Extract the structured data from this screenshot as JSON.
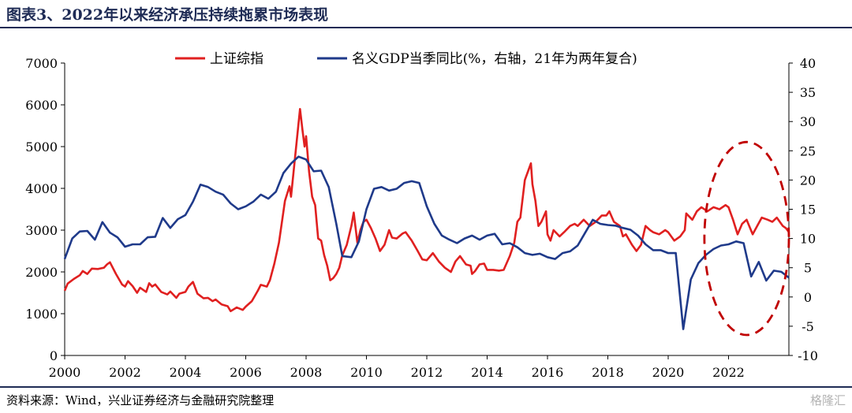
{
  "title": "图表3、2022年以来经济承压持续拖累市场表现",
  "source": "资料来源：Wind，兴业证券经济与金融研究院整理",
  "watermark": "格隆汇",
  "chart_data": {
    "type": "line",
    "legend_position": "top",
    "grid": false,
    "x_range": [
      2000,
      2024
    ],
    "x_ticks": [
      "2000",
      "2002",
      "2004",
      "2006",
      "2008",
      "2010",
      "2012",
      "2014",
      "2016",
      "2018",
      "2020",
      "2022"
    ],
    "y_left_range": [
      0,
      7000
    ],
    "y_left_ticks": [
      "0",
      "1000",
      "2000",
      "3000",
      "4000",
      "5000",
      "6000",
      "7000"
    ],
    "y_right_range": [
      -10,
      40
    ],
    "y_right_ticks": [
      "-10",
      "-5",
      "0",
      "5",
      "10",
      "15",
      "20",
      "25",
      "30",
      "35",
      "40"
    ],
    "colors": {
      "shanghai": "#e02020",
      "gdp": "#1f3a8a",
      "annotation": "#c00000"
    },
    "annotation": {
      "type": "dashed-ellipse",
      "x_range": [
        2021.2,
        2024.0
      ],
      "y_right_range": [
        -6.5,
        26.5
      ]
    },
    "series": [
      {
        "name": "上证综指",
        "axis": "left",
        "points": [
          [
            2000.0,
            1550
          ],
          [
            2000.1,
            1720
          ],
          [
            2000.3,
            1830
          ],
          [
            2000.5,
            1920
          ],
          [
            2000.6,
            2020
          ],
          [
            2000.75,
            1950
          ],
          [
            2000.9,
            2080
          ],
          [
            2001.1,
            2070
          ],
          [
            2001.3,
            2100
          ],
          [
            2001.4,
            2180
          ],
          [
            2001.5,
            2230
          ],
          [
            2001.7,
            1950
          ],
          [
            2001.9,
            1700
          ],
          [
            2002.0,
            1650
          ],
          [
            2002.1,
            1780
          ],
          [
            2002.25,
            1660
          ],
          [
            2002.4,
            1500
          ],
          [
            2002.5,
            1620
          ],
          [
            2002.7,
            1520
          ],
          [
            2002.8,
            1730
          ],
          [
            2002.9,
            1650
          ],
          [
            2003.0,
            1700
          ],
          [
            2003.2,
            1520
          ],
          [
            2003.4,
            1460
          ],
          [
            2003.5,
            1530
          ],
          [
            2003.7,
            1380
          ],
          [
            2003.8,
            1480
          ],
          [
            2004.0,
            1520
          ],
          [
            2004.1,
            1650
          ],
          [
            2004.25,
            1760
          ],
          [
            2004.4,
            1480
          ],
          [
            2004.6,
            1370
          ],
          [
            2004.75,
            1380
          ],
          [
            2004.9,
            1300
          ],
          [
            2005.0,
            1340
          ],
          [
            2005.2,
            1220
          ],
          [
            2005.4,
            1180
          ],
          [
            2005.5,
            1060
          ],
          [
            2005.7,
            1150
          ],
          [
            2005.9,
            1090
          ],
          [
            2006.0,
            1170
          ],
          [
            2006.2,
            1300
          ],
          [
            2006.4,
            1550
          ],
          [
            2006.5,
            1690
          ],
          [
            2006.7,
            1650
          ],
          [
            2006.8,
            1800
          ],
          [
            2006.95,
            2200
          ],
          [
            2007.1,
            2700
          ],
          [
            2007.3,
            3700
          ],
          [
            2007.45,
            4050
          ],
          [
            2007.5,
            3800
          ],
          [
            2007.6,
            4500
          ],
          [
            2007.7,
            5200
          ],
          [
            2007.8,
            5900
          ],
          [
            2007.88,
            5400
          ],
          [
            2007.95,
            5000
          ],
          [
            2008.0,
            5250
          ],
          [
            2008.1,
            4400
          ],
          [
            2008.2,
            3800
          ],
          [
            2008.3,
            3600
          ],
          [
            2008.4,
            2800
          ],
          [
            2008.5,
            2750
          ],
          [
            2008.6,
            2400
          ],
          [
            2008.7,
            2150
          ],
          [
            2008.8,
            1800
          ],
          [
            2008.9,
            1850
          ],
          [
            2009.0,
            1950
          ],
          [
            2009.1,
            2100
          ],
          [
            2009.2,
            2400
          ],
          [
            2009.35,
            2650
          ],
          [
            2009.5,
            3100
          ],
          [
            2009.58,
            3420
          ],
          [
            2009.7,
            2700
          ],
          [
            2009.8,
            3000
          ],
          [
            2009.9,
            3200
          ],
          [
            2010.0,
            3250
          ],
          [
            2010.15,
            3050
          ],
          [
            2010.3,
            2800
          ],
          [
            2010.45,
            2500
          ],
          [
            2010.6,
            2650
          ],
          [
            2010.75,
            3000
          ],
          [
            2010.85,
            2820
          ],
          [
            2011.0,
            2800
          ],
          [
            2011.2,
            2920
          ],
          [
            2011.3,
            2950
          ],
          [
            2011.5,
            2750
          ],
          [
            2011.7,
            2500
          ],
          [
            2011.85,
            2300
          ],
          [
            2012.0,
            2280
          ],
          [
            2012.2,
            2450
          ],
          [
            2012.4,
            2250
          ],
          [
            2012.6,
            2100
          ],
          [
            2012.8,
            2000
          ],
          [
            2012.95,
            2250
          ],
          [
            2013.1,
            2380
          ],
          [
            2013.3,
            2180
          ],
          [
            2013.45,
            2150
          ],
          [
            2013.5,
            1950
          ],
          [
            2013.6,
            2020
          ],
          [
            2013.75,
            2180
          ],
          [
            2013.9,
            2200
          ],
          [
            2014.0,
            2050
          ],
          [
            2014.2,
            2050
          ],
          [
            2014.4,
            2030
          ],
          [
            2014.55,
            2050
          ],
          [
            2014.75,
            2380
          ],
          [
            2014.9,
            2700
          ],
          [
            2015.0,
            3200
          ],
          [
            2015.1,
            3300
          ],
          [
            2015.25,
            4200
          ],
          [
            2015.4,
            4500
          ],
          [
            2015.45,
            4600
          ],
          [
            2015.5,
            4100
          ],
          [
            2015.6,
            3700
          ],
          [
            2015.7,
            3100
          ],
          [
            2015.8,
            3200
          ],
          [
            2015.95,
            3450
          ],
          [
            2016.0,
            2900
          ],
          [
            2016.1,
            2750
          ],
          [
            2016.2,
            3000
          ],
          [
            2016.4,
            2850
          ],
          [
            2016.55,
            2950
          ],
          [
            2016.75,
            3100
          ],
          [
            2016.9,
            3150
          ],
          [
            2017.0,
            3100
          ],
          [
            2017.2,
            3250
          ],
          [
            2017.4,
            3100
          ],
          [
            2017.6,
            3200
          ],
          [
            2017.8,
            3350
          ],
          [
            2017.95,
            3350
          ],
          [
            2018.05,
            3450
          ],
          [
            2018.2,
            3200
          ],
          [
            2018.4,
            3100
          ],
          [
            2018.5,
            2850
          ],
          [
            2018.6,
            2900
          ],
          [
            2018.8,
            2650
          ],
          [
            2018.95,
            2500
          ],
          [
            2019.1,
            2650
          ],
          [
            2019.25,
            3100
          ],
          [
            2019.4,
            3000
          ],
          [
            2019.5,
            2950
          ],
          [
            2019.7,
            2900
          ],
          [
            2019.9,
            3000
          ],
          [
            2020.0,
            2950
          ],
          [
            2020.1,
            2850
          ],
          [
            2020.2,
            2750
          ],
          [
            2020.4,
            2850
          ],
          [
            2020.55,
            3000
          ],
          [
            2020.6,
            3400
          ],
          [
            2020.8,
            3250
          ],
          [
            2020.95,
            3450
          ],
          [
            2021.1,
            3550
          ],
          [
            2021.3,
            3450
          ],
          [
            2021.5,
            3550
          ],
          [
            2021.7,
            3500
          ],
          [
            2021.9,
            3600
          ],
          [
            2022.0,
            3550
          ],
          [
            2022.15,
            3250
          ],
          [
            2022.3,
            2900
          ],
          [
            2022.45,
            3150
          ],
          [
            2022.6,
            3250
          ],
          [
            2022.8,
            2900
          ],
          [
            2022.95,
            3100
          ],
          [
            2023.1,
            3300
          ],
          [
            2023.3,
            3250
          ],
          [
            2023.45,
            3200
          ],
          [
            2023.6,
            3300
          ],
          [
            2023.8,
            3100
          ],
          [
            2023.9,
            3050
          ],
          [
            2024.0,
            2950
          ]
        ]
      },
      {
        "name": "名义GDP当季同比(%，右轴，21年为两年复合)",
        "axis": "right",
        "points": [
          [
            2000.0,
            6.5
          ],
          [
            2000.25,
            10
          ],
          [
            2000.5,
            11.2
          ],
          [
            2000.75,
            11.3
          ],
          [
            2001.0,
            9.8
          ],
          [
            2001.25,
            12.8
          ],
          [
            2001.5,
            11
          ],
          [
            2001.75,
            10.2
          ],
          [
            2002.0,
            8.6
          ],
          [
            2002.25,
            9
          ],
          [
            2002.5,
            9
          ],
          [
            2002.75,
            10.2
          ],
          [
            2003.0,
            10.3
          ],
          [
            2003.25,
            13.5
          ],
          [
            2003.5,
            11.8
          ],
          [
            2003.75,
            13.3
          ],
          [
            2004.0,
            14
          ],
          [
            2004.25,
            16.3
          ],
          [
            2004.5,
            19.2
          ],
          [
            2004.75,
            18.8
          ],
          [
            2005.0,
            18
          ],
          [
            2005.25,
            17.5
          ],
          [
            2005.5,
            16
          ],
          [
            2005.75,
            15
          ],
          [
            2006.0,
            15.5
          ],
          [
            2006.25,
            16.3
          ],
          [
            2006.5,
            17.5
          ],
          [
            2006.75,
            16.8
          ],
          [
            2007.0,
            18
          ],
          [
            2007.25,
            21.2
          ],
          [
            2007.5,
            22.8
          ],
          [
            2007.75,
            24
          ],
          [
            2008.0,
            23.5
          ],
          [
            2008.25,
            21.5
          ],
          [
            2008.5,
            21.6
          ],
          [
            2008.75,
            18.8
          ],
          [
            2009.0,
            12.5
          ],
          [
            2009.2,
            7
          ],
          [
            2009.5,
            6.8
          ],
          [
            2009.75,
            9.5
          ],
          [
            2010.0,
            15
          ],
          [
            2010.25,
            18.5
          ],
          [
            2010.5,
            18.8
          ],
          [
            2010.75,
            18.2
          ],
          [
            2011.0,
            18.5
          ],
          [
            2011.25,
            19.5
          ],
          [
            2011.5,
            19.8
          ],
          [
            2011.75,
            19.5
          ],
          [
            2012.0,
            15.5
          ],
          [
            2012.25,
            12.5
          ],
          [
            2012.5,
            10.5
          ],
          [
            2012.75,
            9.8
          ],
          [
            2013.0,
            9.2
          ],
          [
            2013.25,
            10
          ],
          [
            2013.5,
            10.5
          ],
          [
            2013.75,
            9.8
          ],
          [
            2014.0,
            10.5
          ],
          [
            2014.25,
            10.8
          ],
          [
            2014.5,
            9
          ],
          [
            2014.75,
            9.2
          ],
          [
            2015.0,
            8.5
          ],
          [
            2015.25,
            7.5
          ],
          [
            2015.5,
            7.2
          ],
          [
            2015.75,
            7.4
          ],
          [
            2016.0,
            6.8
          ],
          [
            2016.25,
            6.5
          ],
          [
            2016.5,
            7.5
          ],
          [
            2016.75,
            7.8
          ],
          [
            2017.0,
            8.8
          ],
          [
            2017.25,
            11
          ],
          [
            2017.5,
            13.2
          ],
          [
            2017.75,
            12.5
          ],
          [
            2018.0,
            12.3
          ],
          [
            2018.25,
            12.2
          ],
          [
            2018.5,
            11.8
          ],
          [
            2018.75,
            11.5
          ],
          [
            2019.0,
            10.5
          ],
          [
            2019.25,
            9
          ],
          [
            2019.5,
            8
          ],
          [
            2019.75,
            8
          ],
          [
            2020.0,
            7.5
          ],
          [
            2020.25,
            7.5
          ],
          [
            2020.5,
            -5.5
          ],
          [
            2020.75,
            3
          ],
          [
            2021.0,
            5.8
          ],
          [
            2021.25,
            7.2
          ],
          [
            2021.5,
            8.2
          ],
          [
            2021.75,
            8.8
          ],
          [
            2022.0,
            9
          ],
          [
            2022.25,
            9.5
          ],
          [
            2022.5,
            9.2
          ],
          [
            2022.75,
            3.5
          ],
          [
            2023.0,
            6
          ],
          [
            2023.25,
            2.8
          ],
          [
            2023.5,
            4.5
          ],
          [
            2023.75,
            4.3
          ],
          [
            2024.0,
            3.3
          ]
        ]
      }
    ]
  }
}
